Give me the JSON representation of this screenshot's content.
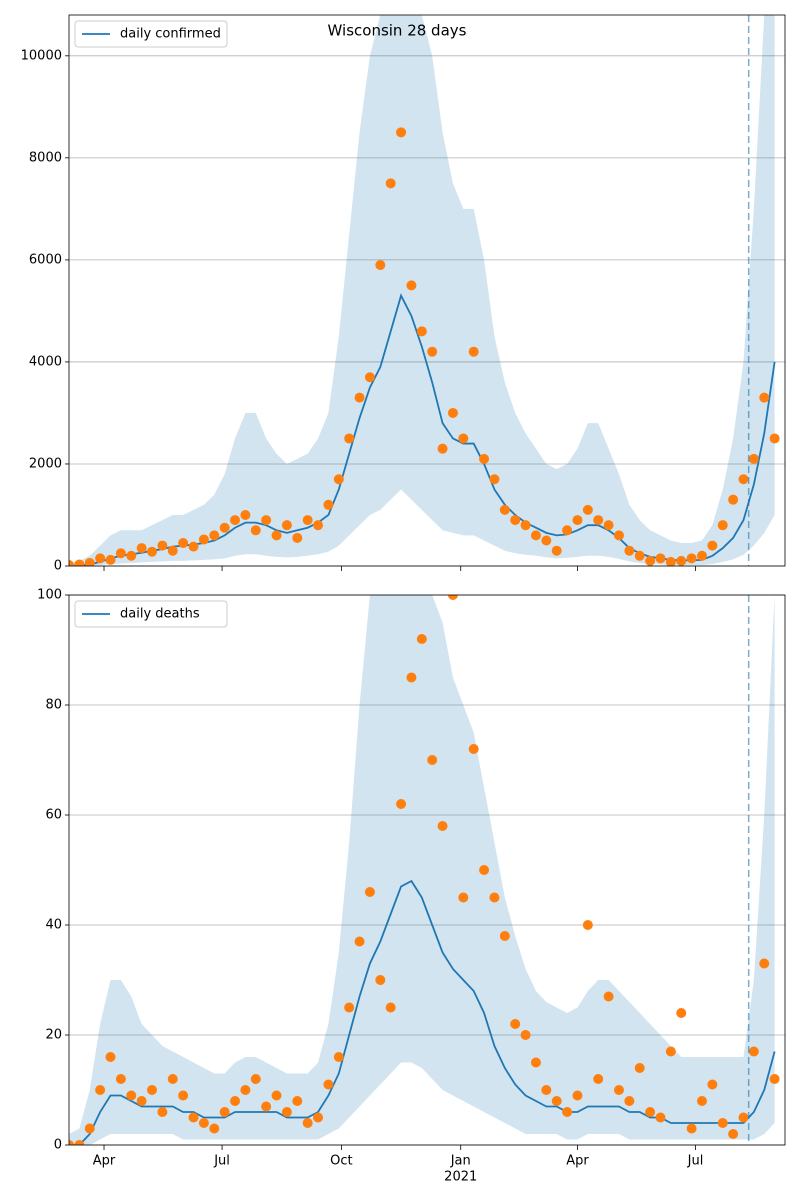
{
  "chart_data": [
    {
      "type": "line",
      "title": "Wisconsin 28 days",
      "x": [
        0,
        8,
        16,
        24,
        32,
        40,
        48,
        56,
        64,
        72,
        80,
        88,
        96,
        104,
        112,
        120,
        128,
        136,
        144,
        152,
        160,
        168,
        176,
        184,
        192,
        200,
        208,
        216,
        224,
        232,
        240,
        248,
        256,
        264,
        272,
        280,
        288,
        296,
        304,
        312,
        320,
        328,
        336,
        344,
        352,
        360,
        368,
        376,
        384,
        392,
        400,
        408,
        416,
        424,
        432,
        440,
        448,
        456,
        464,
        472,
        480,
        488,
        496,
        504,
        512,
        520,
        528,
        536,
        544
      ],
      "series": [
        {
          "name": "daily confirmed",
          "color": "#1f77b4",
          "values": [
            0,
            10,
            30,
            80,
            150,
            200,
            230,
            260,
            300,
            330,
            380,
            400,
            420,
            450,
            500,
            600,
            750,
            850,
            850,
            800,
            700,
            650,
            700,
            750,
            850,
            1000,
            1500,
            2200,
            2900,
            3500,
            3900,
            4600,
            5300,
            4900,
            4300,
            3600,
            2800,
            2500,
            2400,
            2400,
            2000,
            1500,
            1200,
            1000,
            850,
            750,
            650,
            600,
            620,
            700,
            800,
            800,
            700,
            550,
            350,
            250,
            180,
            150,
            120,
            110,
            110,
            120,
            200,
            350,
            550,
            900,
            1600,
            2600,
            4000
          ]
        },
        {
          "color": "#ff7f0e",
          "style": "scatter",
          "values": [
            20,
            30,
            60,
            150,
            120,
            250,
            200,
            350,
            280,
            400,
            300,
            450,
            380,
            520,
            600,
            750,
            900,
            1000,
            700,
            900,
            600,
            800,
            550,
            900,
            800,
            1200,
            1700,
            2500,
            3300,
            3700,
            5900,
            7500,
            8500,
            5500,
            4600,
            4200,
            2300,
            3000,
            2500,
            4200,
            2100,
            1700,
            1100,
            900,
            800,
            600,
            500,
            300,
            700,
            900,
            1100,
            900,
            800,
            600,
            300,
            200,
            100,
            150,
            80,
            100,
            150,
            200,
            400,
            800,
            1300,
            1700,
            2100,
            3300,
            2500
          ]
        }
      ],
      "band": {
        "color": "#1f77b4",
        "upper": [
          50,
          100,
          200,
          400,
          600,
          700,
          700,
          700,
          800,
          900,
          1000,
          1000,
          1100,
          1200,
          1400,
          1800,
          2500,
          3000,
          3000,
          2500,
          2200,
          2000,
          2100,
          2200,
          2500,
          3000,
          4500,
          6500,
          8500,
          10000,
          10800,
          10800,
          10800,
          10800,
          10800,
          10000,
          8500,
          7500,
          7000,
          7000,
          6000,
          4500,
          3600,
          3000,
          2600,
          2300,
          2000,
          1900,
          2000,
          2300,
          2800,
          2800,
          2300,
          1800,
          1200,
          900,
          700,
          600,
          500,
          450,
          450,
          500,
          800,
          1500,
          2500,
          4000,
          7000,
          10800,
          10800
        ],
        "lower": [
          0,
          0,
          5,
          20,
          40,
          50,
          60,
          70,
          80,
          90,
          100,
          100,
          110,
          120,
          130,
          150,
          200,
          230,
          230,
          200,
          180,
          170,
          180,
          200,
          230,
          280,
          400,
          600,
          800,
          1000,
          1100,
          1300,
          1500,
          1300,
          1100,
          900,
          700,
          650,
          600,
          600,
          500,
          400,
          300,
          250,
          220,
          200,
          170,
          150,
          160,
          180,
          200,
          200,
          180,
          140,
          90,
          60,
          40,
          30,
          20,
          20,
          20,
          20,
          40,
          80,
          130,
          220,
          400,
          650,
          1000
        ]
      },
      "forecast_start": 524,
      "xlim": [
        0,
        552
      ],
      "ylim": [
        0,
        10800
      ],
      "yticks": [
        0,
        2000,
        4000,
        6000,
        8000,
        10000
      ],
      "xticks": [
        {
          "value": 27,
          "label": "Apr"
        },
        {
          "value": 118,
          "label": "Jul"
        },
        {
          "value": 210,
          "label": "Oct"
        },
        {
          "value": 302,
          "label": "Jan"
        },
        {
          "value": 392,
          "label": "Apr"
        },
        {
          "value": 483,
          "label": "Jul"
        }
      ],
      "grid": true,
      "legend": "upper left"
    },
    {
      "type": "line",
      "x": [
        0,
        8,
        16,
        24,
        32,
        40,
        48,
        56,
        64,
        72,
        80,
        88,
        96,
        104,
        112,
        120,
        128,
        136,
        144,
        152,
        160,
        168,
        176,
        184,
        192,
        200,
        208,
        216,
        224,
        232,
        240,
        248,
        256,
        264,
        272,
        280,
        288,
        296,
        304,
        312,
        320,
        328,
        336,
        344,
        352,
        360,
        368,
        376,
        384,
        392,
        400,
        408,
        416,
        424,
        432,
        440,
        448,
        456,
        464,
        472,
        480,
        488,
        496,
        504,
        512,
        520,
        528,
        536,
        544
      ],
      "series": [
        {
          "name": "daily deaths",
          "color": "#1f77b4",
          "values": [
            0,
            0,
            2,
            6,
            9,
            9,
            8,
            7,
            7,
            7,
            7,
            6,
            6,
            5,
            5,
            5,
            6,
            6,
            6,
            6,
            6,
            5,
            5,
            5,
            6,
            9,
            13,
            20,
            27,
            33,
            37,
            42,
            47,
            48,
            45,
            40,
            35,
            32,
            30,
            28,
            24,
            18,
            14,
            11,
            9,
            8,
            7,
            7,
            6,
            6,
            7,
            7,
            7,
            7,
            6,
            6,
            5,
            5,
            4,
            4,
            4,
            4,
            4,
            4,
            4,
            4,
            6,
            10,
            17
          ]
        },
        {
          "color": "#ff7f0e",
          "style": "scatter",
          "values": [
            0,
            0,
            3,
            10,
            16,
            12,
            9,
            8,
            10,
            6,
            12,
            9,
            5,
            4,
            3,
            6,
            8,
            10,
            12,
            7,
            9,
            6,
            8,
            4,
            5,
            11,
            16,
            25,
            37,
            46,
            30,
            25,
            62,
            85,
            92,
            70,
            58,
            100,
            45,
            72,
            50,
            45,
            38,
            22,
            20,
            15,
            10,
            8,
            6,
            9,
            40,
            12,
            27,
            10,
            8,
            14,
            6,
            5,
            17,
            24,
            3,
            8,
            11,
            4,
            2,
            5,
            17,
            33,
            12
          ]
        }
      ],
      "band": {
        "color": "#1f77b4",
        "upper": [
          2,
          3,
          10,
          22,
          30,
          30,
          27,
          22,
          20,
          18,
          17,
          16,
          15,
          14,
          13,
          13,
          15,
          16,
          16,
          15,
          14,
          13,
          13,
          13,
          15,
          22,
          35,
          55,
          80,
          100,
          100,
          100,
          100,
          100,
          100,
          100,
          95,
          85,
          80,
          75,
          65,
          55,
          45,
          38,
          32,
          28,
          26,
          25,
          24,
          25,
          28,
          30,
          30,
          28,
          26,
          24,
          22,
          20,
          18,
          16,
          16,
          16,
          16,
          16,
          16,
          16,
          30,
          60,
          100
        ],
        "lower": [
          0,
          0,
          0,
          1,
          2,
          2,
          2,
          2,
          2,
          2,
          2,
          1,
          1,
          1,
          1,
          1,
          1,
          1,
          1,
          1,
          1,
          1,
          1,
          1,
          1,
          2,
          3,
          5,
          7,
          9,
          11,
          13,
          15,
          15,
          14,
          12,
          10,
          9,
          8,
          7,
          6,
          5,
          4,
          3,
          2,
          2,
          2,
          2,
          1,
          1,
          2,
          2,
          2,
          2,
          1,
          1,
          1,
          1,
          1,
          1,
          1,
          1,
          1,
          1,
          1,
          1,
          1,
          2,
          4
        ]
      },
      "forecast_start": 524,
      "xlim": [
        0,
        552
      ],
      "ylim": [
        0,
        100
      ],
      "yticks": [
        0,
        20,
        40,
        60,
        80,
        100
      ],
      "xticks": [
        {
          "value": 27,
          "label": "Apr"
        },
        {
          "value": 118,
          "label": "Jul"
        },
        {
          "value": 210,
          "label": "Oct"
        },
        {
          "value": 302,
          "label": "Jan"
        },
        {
          "value": 392,
          "label": "Apr"
        },
        {
          "value": 483,
          "label": "Jul"
        }
      ],
      "year_label": "2021",
      "grid": true,
      "legend": "upper left"
    }
  ]
}
